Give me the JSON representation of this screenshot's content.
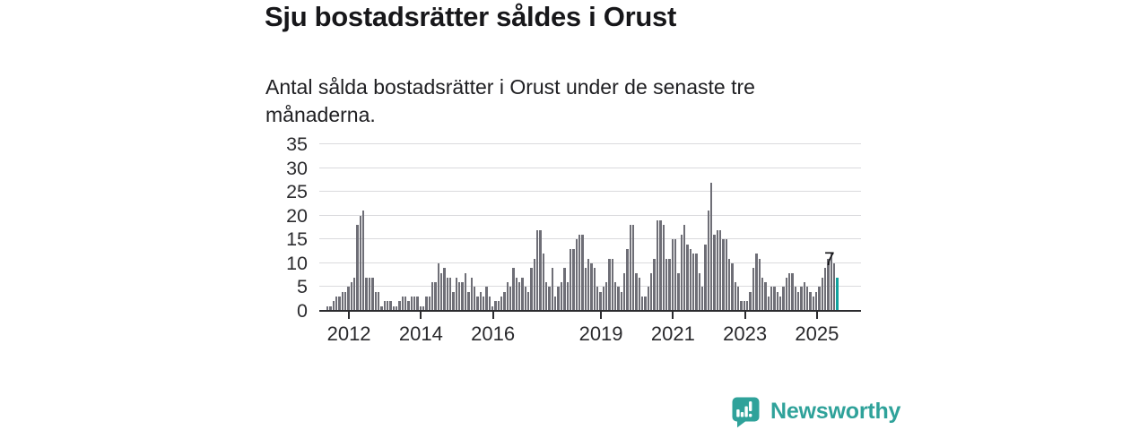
{
  "header": {
    "title": "Sju bostadsrätter såldes i Orust",
    "subtitle_lines": [
      "Antal sålda bostadsrätter i Orust under de senaste tre",
      "månaderna."
    ]
  },
  "chart_data": {
    "type": "bar",
    "title": "",
    "xlabel": "",
    "ylabel": "",
    "x_unit": "month",
    "x_start": "2011-06",
    "x_end": "2025-08",
    "values": [
      1,
      1,
      2,
      3,
      3,
      4,
      4,
      5,
      6,
      7,
      18,
      20,
      21,
      7,
      7,
      7,
      4,
      4,
      1,
      2,
      2,
      2,
      1,
      1,
      2,
      3,
      3,
      2,
      3,
      3,
      3,
      1,
      1,
      3,
      3,
      6,
      6,
      10,
      8,
      9,
      7,
      7,
      4,
      7,
      6,
      6,
      8,
      4,
      7,
      5,
      3,
      4,
      3,
      5,
      3,
      1,
      2,
      2,
      3,
      4,
      6,
      5,
      9,
      7,
      6,
      7,
      5,
      4,
      9,
      11,
      17,
      17,
      12,
      6,
      5,
      9,
      3,
      5,
      6,
      9,
      6,
      13,
      13,
      15,
      16,
      16,
      9,
      11,
      10,
      9,
      5,
      4,
      5,
      6,
      11,
      11,
      6,
      5,
      4,
      8,
      13,
      18,
      18,
      8,
      7,
      3,
      3,
      5,
      8,
      11,
      19,
      19,
      18,
      11,
      11,
      15,
      15,
      8,
      16,
      18,
      14,
      13,
      12,
      12,
      8,
      5,
      14,
      21,
      27,
      16,
      17,
      17,
      15,
      15,
      11,
      10,
      6,
      5,
      2,
      2,
      2,
      4,
      9,
      12,
      11,
      7,
      6,
      3,
      5,
      5,
      4,
      3,
      5,
      7,
      8,
      8,
      5,
      4,
      5,
      6,
      5,
      4,
      3,
      4,
      5,
      7,
      9,
      11,
      12,
      10,
      7
    ],
    "ylim": [
      0,
      35
    ],
    "yticks": [
      0,
      5,
      10,
      15,
      20,
      25,
      30,
      35
    ],
    "xtick_labels": [
      "2012",
      "2014",
      "2016",
      "2019",
      "2021",
      "2023",
      "2025"
    ],
    "xtick_month_index": [
      7,
      31,
      55,
      91,
      115,
      139,
      163
    ],
    "grid": true,
    "legend_position": "none",
    "bar_color": "#6e6e76",
    "highlight": {
      "index": 170,
      "value": 7,
      "label": "7",
      "color": "#12a39e"
    }
  },
  "footer": {
    "brand": "Newsworthy"
  },
  "colors": {
    "accent_teal": "#12a39e",
    "brand_teal": "#2fa29a",
    "bar_gray": "#6e6e76",
    "grid_gray": "#dadadd",
    "axis_dark": "#2b2b2e",
    "text_dark": "#17171a"
  }
}
